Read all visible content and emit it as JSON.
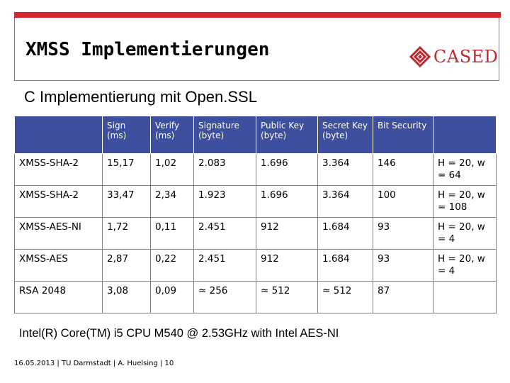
{
  "slide": {
    "title": "XMSS Implementierungen",
    "subtitle": "C Implementierung mit Open.SSL",
    "logo_text": "CASED",
    "accent_color": "#d3262f",
    "header_color": "#3d4f9e"
  },
  "table": {
    "headers": [
      "",
      "Sign (ms)",
      "Verify (ms)",
      "Signature (byte)",
      "Public Key (byte)",
      "Secret Key (byte)",
      "Bit Security",
      ""
    ],
    "rows": [
      [
        "XMSS-SHA-2",
        "15,17",
        "1,02",
        "2.083",
        "1.696",
        "3.364",
        "146",
        "H = 20, w = 64"
      ],
      [
        "XMSS-SHA-2",
        "33,47",
        "2,34",
        "1.923",
        "1.696",
        "3.364",
        "100",
        "H = 20, w = 108"
      ],
      [
        "XMSS-AES-NI",
        "1,72",
        "0,11",
        "2.451",
        "912",
        "1.684",
        "93",
        "H = 20, w = 4"
      ],
      [
        "XMSS-AES",
        "2,87",
        "0,22",
        "2.451",
        "912",
        "1.684",
        "93",
        "H = 20, w = 4"
      ],
      [
        "RSA 2048",
        "3,08",
        "0,09",
        "≈ 256",
        "≈ 512",
        "≈ 512",
        "87",
        ""
      ]
    ]
  },
  "footnote": "Intel(R) Core(TM) i5 CPU M540 @ 2.53GHz with Intel  AES-NI",
  "footer": "16.05.2013 | TU Darmstadt | A. Huelsing | 10"
}
